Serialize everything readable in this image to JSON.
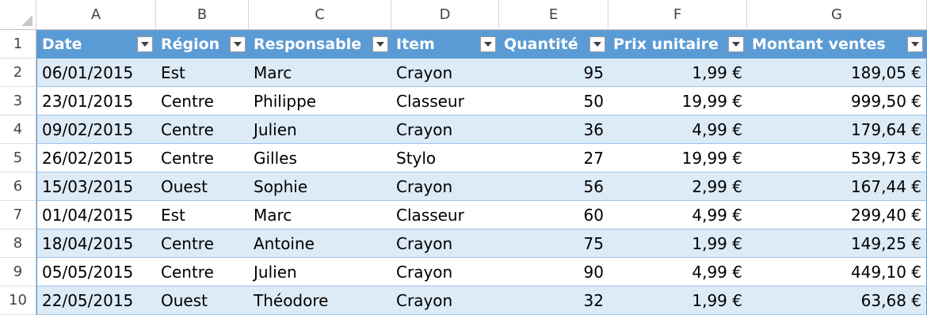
{
  "columns": [
    "A",
    "B",
    "C",
    "D",
    "E",
    "F",
    "G"
  ],
  "row_numbers": [
    "1",
    "2",
    "3",
    "4",
    "5",
    "6",
    "7",
    "8",
    "9",
    "10"
  ],
  "table": {
    "headers": [
      "Date",
      "Région",
      "Responsable",
      "Item",
      "Quantité",
      "Prix unitaire",
      "Montant ventes"
    ],
    "rows": [
      [
        "06/01/2015",
        "Est",
        "Marc",
        "Crayon",
        "95",
        "1,99 €",
        "189,05 €"
      ],
      [
        "23/01/2015",
        "Centre",
        "Philippe",
        "Classeur",
        "50",
        "19,99 €",
        "999,50 €"
      ],
      [
        "09/02/2015",
        "Centre",
        "Julien",
        "Crayon",
        "36",
        "4,99 €",
        "179,64 €"
      ],
      [
        "26/02/2015",
        "Centre",
        "Gilles",
        "Stylo",
        "27",
        "19,99 €",
        "539,73 €"
      ],
      [
        "15/03/2015",
        "Ouest",
        "Sophie",
        "Crayon",
        "56",
        "2,99 €",
        "167,44 €"
      ],
      [
        "01/04/2015",
        "Est",
        "Marc",
        "Classeur",
        "60",
        "4,99 €",
        "299,40 €"
      ],
      [
        "18/04/2015",
        "Centre",
        "Antoine",
        "Crayon",
        "75",
        "1,99 €",
        "149,25 €"
      ],
      [
        "05/05/2015",
        "Centre",
        "Julien",
        "Crayon",
        "90",
        "4,99 €",
        "449,10 €"
      ],
      [
        "22/05/2015",
        "Ouest",
        "Théodore",
        "Crayon",
        "32",
        "1,99 €",
        "63,68 €"
      ]
    ]
  },
  "colors": {
    "header_fill": "#5b9bd5",
    "band_fill": "#ddebf7",
    "border": "#9bc2e6"
  }
}
